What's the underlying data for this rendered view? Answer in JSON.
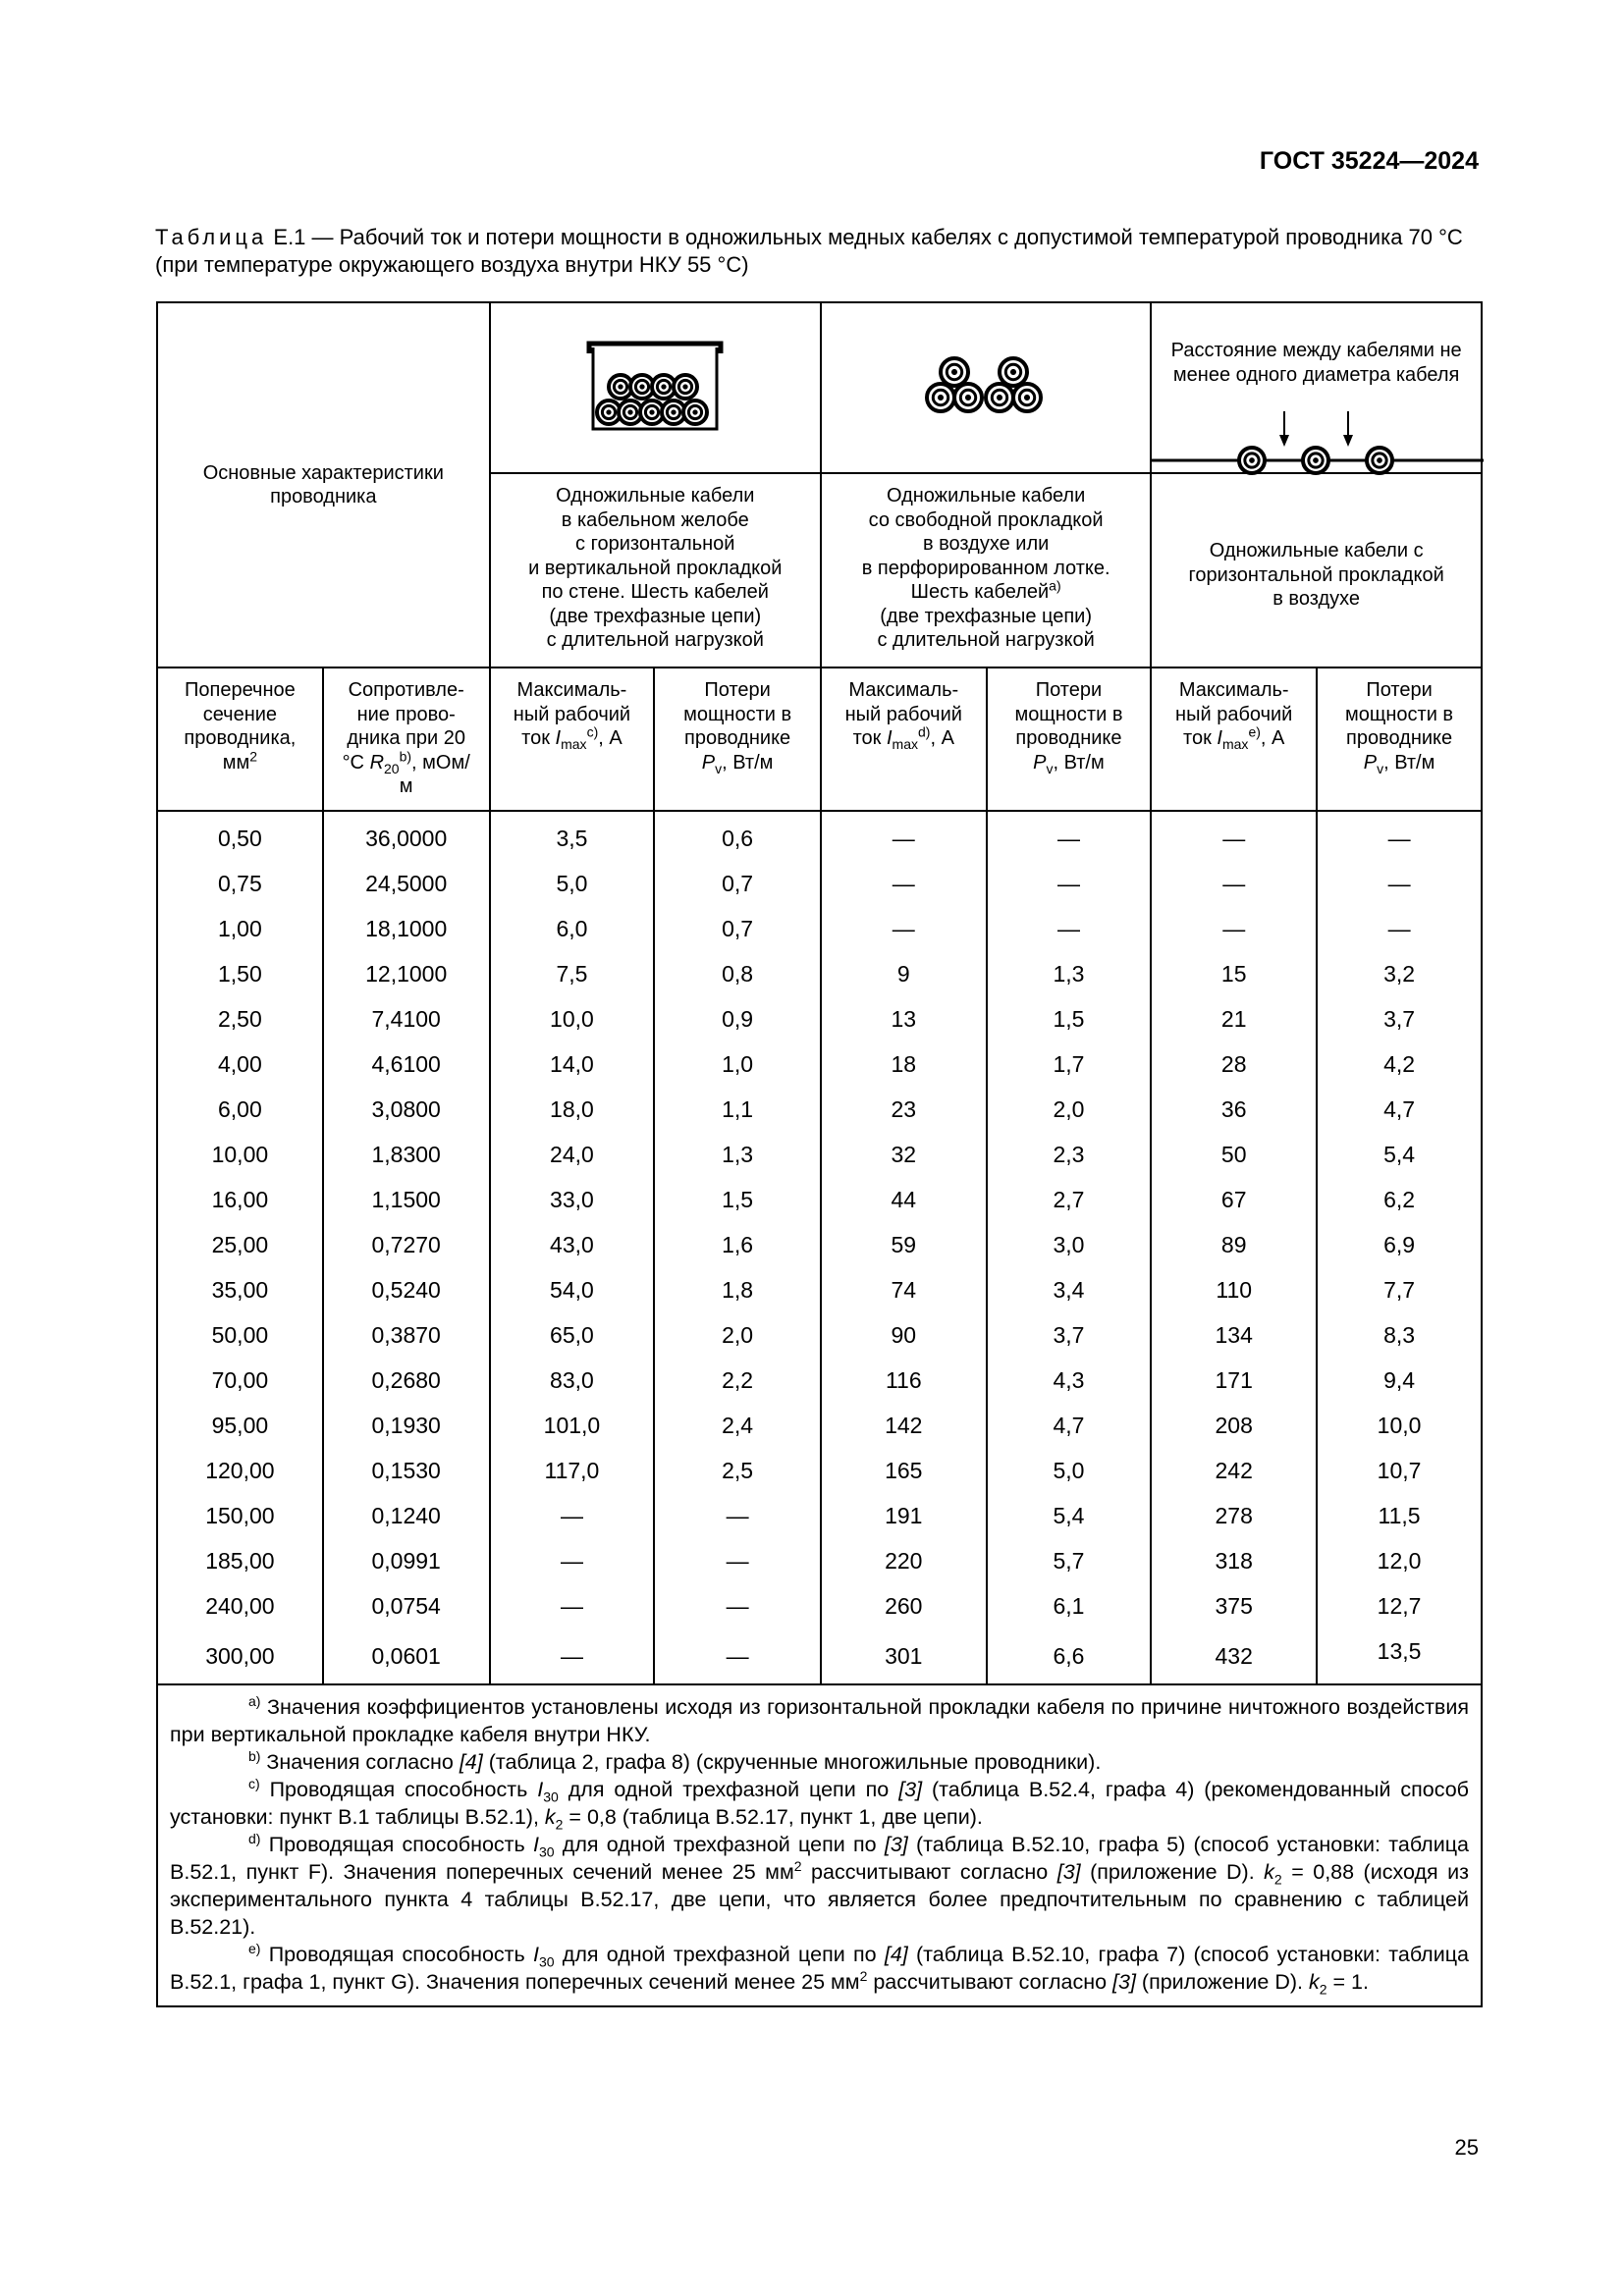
{
  "header": {
    "standard": "ГОСТ 35224—2024"
  },
  "caption": {
    "label": "Таблица",
    "number": "Е.1",
    "text": " — Рабочий ток и потери мощности в одножильных медных кабелях с допустимой температурой проводника 70 °С (при температуре окружающего воздуха внутри НКУ 55 °С)"
  },
  "table": {
    "main_char": "Основные характеристики проводника",
    "spacing_note": "Расстояние между кабелями не менее одного диаметра кабеля",
    "groups": [
      {
        "icon": "cable-tray-icon",
        "lines": [
          "Одножильные кабели",
          "в кабельном желобе",
          "с горизонтальной",
          "и вертикальной прокладкой",
          "по стене. Шесть кабелей",
          "(две трехфазные цепи)",
          "с длительной нагрузкой"
        ]
      },
      {
        "icon": "trefoil-cables-icon",
        "lines": [
          "Одножильные кабели",
          "со свободной прокладкой",
          "в воздухе или",
          "в перфорированном лотке.",
          "Шесть кабелей",
          "(две трехфазные цепи)",
          "с длительной нагрузкой"
        ],
        "sup": "a)"
      },
      {
        "icon": "spaced-cables-icon",
        "lines": [
          "Одножильные кабели с",
          "горизонтальной прокладкой",
          "в воздухе"
        ]
      }
    ],
    "col_section": {
      "text": "Поперечное сечение проводника, мм",
      "sup": "2"
    },
    "col_resist": {
      "text": "Сопротивле-ние прово-дника при 20 °С ",
      "var": "R",
      "sub": "20",
      "sup": "b)",
      "unit": ", мОм/м"
    },
    "col_imax": {
      "text": "Максималь-ный рабочий ток ",
      "var": "I",
      "sub": "max",
      "unit": ", А",
      "sups": [
        "c)",
        "d)",
        "e)"
      ]
    },
    "col_loss": {
      "text": "Потери мощности в проводнике ",
      "var": "P",
      "sub": "v",
      "unit": ", Вт/м"
    },
    "rows": [
      [
        "0,50",
        "36,0000",
        "3,5",
        "0,6",
        "—",
        "—",
        "—",
        "—"
      ],
      [
        "0,75",
        "24,5000",
        "5,0",
        "0,7",
        "—",
        "—",
        "—",
        "—"
      ],
      [
        "1,00",
        "18,1000",
        "6,0",
        "0,7",
        "—",
        "—",
        "—",
        "—"
      ],
      [
        "1,50",
        "12,1000",
        "7,5",
        "0,8",
        "9",
        "1,3",
        "15",
        "3,2"
      ],
      [
        "2,50",
        "7,4100",
        "10,0",
        "0,9",
        "13",
        "1,5",
        "21",
        "3,7"
      ],
      [
        "4,00",
        "4,6100",
        "14,0",
        "1,0",
        "18",
        "1,7",
        "28",
        "4,2"
      ],
      [
        "6,00",
        "3,0800",
        "18,0",
        "1,1",
        "23",
        "2,0",
        "36",
        "4,7"
      ],
      [
        "10,00",
        "1,8300",
        "24,0",
        "1,3",
        "32",
        "2,3",
        "50",
        "5,4"
      ],
      [
        "16,00",
        "1,1500",
        "33,0",
        "1,5",
        "44",
        "2,7",
        "67",
        "6,2"
      ],
      [
        "25,00",
        "0,7270",
        "43,0",
        "1,6",
        "59",
        "3,0",
        "89",
        "6,9"
      ],
      [
        "35,00",
        "0,5240",
        "54,0",
        "1,8",
        "74",
        "3,4",
        "110",
        "7,7"
      ],
      [
        "50,00",
        "0,3870",
        "65,0",
        "2,0",
        "90",
        "3,7",
        "134",
        "8,3"
      ],
      [
        "70,00",
        "0,2680",
        "83,0",
        "2,2",
        "116",
        "4,3",
        "171",
        "9,4"
      ],
      [
        "95,00",
        "0,1930",
        "101,0",
        "2,4",
        "142",
        "4,7",
        "208",
        "10,0"
      ],
      [
        "120,00",
        "0,1530",
        "117,0",
        "2,5",
        "165",
        "5,0",
        "242",
        "10,7"
      ],
      [
        "150,00",
        "0,1240",
        "—",
        "—",
        "191",
        "5,4",
        "278",
        "11,5"
      ],
      [
        "185,00",
        "0,0991",
        "—",
        "—",
        "220",
        "5,7",
        "318",
        "12,0"
      ],
      [
        "240,00",
        "0,0754",
        "—",
        "—",
        "260",
        "6,1",
        "375",
        "12,7"
      ],
      [
        "300,00",
        "0,0601",
        "—",
        "—",
        "301",
        "6,6",
        "432",
        "13,5"
      ]
    ]
  },
  "footnotes": [
    {
      "mark": "a)",
      "html": "Значения коэффициентов установлены исходя из горизонтальной прокладки кабеля по причине ничтожного воздействия при вертикальной прокладке кабеля внутри НКУ."
    },
    {
      "mark": "b)",
      "html": "Значения согласно <i>[4]</i> (таблица 2, графа 8) (скрученные многожильные проводники)."
    },
    {
      "mark": "c)",
      "html": "Проводящая способность <i>I</i><sub>30</sub> для одной трехфазной цепи по <i>[3]</i> (таблица B.52.4, графа 4) (рекомендованный способ установки: пункт B.1 таблицы B.52.1), <i>k</i><sub>2</sub> = 0,8 (таблица B.52.17, пункт 1, две цепи)."
    },
    {
      "mark": "d)",
      "html": "Проводящая способность <i>I</i><sub>30</sub> для одной трехфазной цепи по <i>[3]</i> (таблица B.52.10, графа 5) (способ установки: таблица B.52.1, пункт F). Значения поперечных сечений менее 25 мм<sup>2</sup> рассчитывают согласно <i>[3]</i> (приложение D). <i>k</i><sub>2</sub> = 0,88 (исходя из экспериментального пункта 4 таблицы B.52.17, две цепи, что является более предпочтительным по сравнению с таблицей B.52.21)."
    },
    {
      "mark": "e)",
      "html": "Проводящая способность <i>I</i><sub>30</sub> для одной трехфазной цепи по <i>[4]</i> (таблица B.52.10, графа 7) (способ установки: таблица B.52.1, графа 1, пункт G). Значения поперечных сечений менее 25 мм<sup>2</sup> рассчитывают согласно <i>[3]</i> (приложение D). <i>k</i><sub>2</sub> = 1."
    }
  ],
  "page_number": "25"
}
